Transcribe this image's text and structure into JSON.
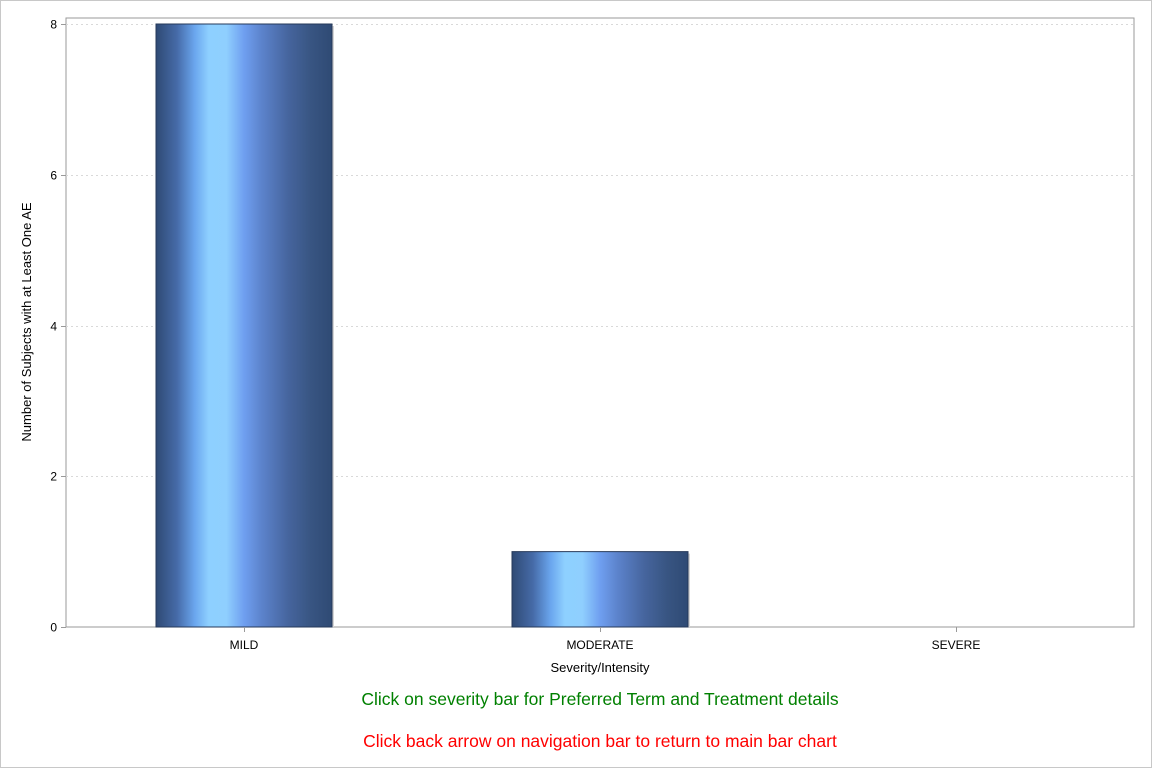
{
  "chart_data": {
    "type": "bar",
    "categories": [
      "MILD",
      "MODERATE",
      "SEVERE"
    ],
    "values": [
      8,
      1,
      0
    ],
    "xlabel": "Severity/Intensity",
    "ylabel": "Number of Subjects with at Least One AE",
    "ylim": [
      0,
      8
    ],
    "yticks": [
      0,
      2,
      4,
      6,
      8
    ],
    "grid": true,
    "colors": {
      "bar_dark": "#2f4a74",
      "bar_mid": "#5d86d8",
      "bar_light": "#8ed0ff",
      "grid": "#d9d9d9",
      "axis": "#9a9a9a"
    }
  },
  "instructions": {
    "line1": "Click on severity bar for Preferred Term and Treatment details",
    "line1_color": "#008000",
    "line2": "Click back arrow on navigation bar to return to main bar chart",
    "line2_color": "#ff0000"
  }
}
